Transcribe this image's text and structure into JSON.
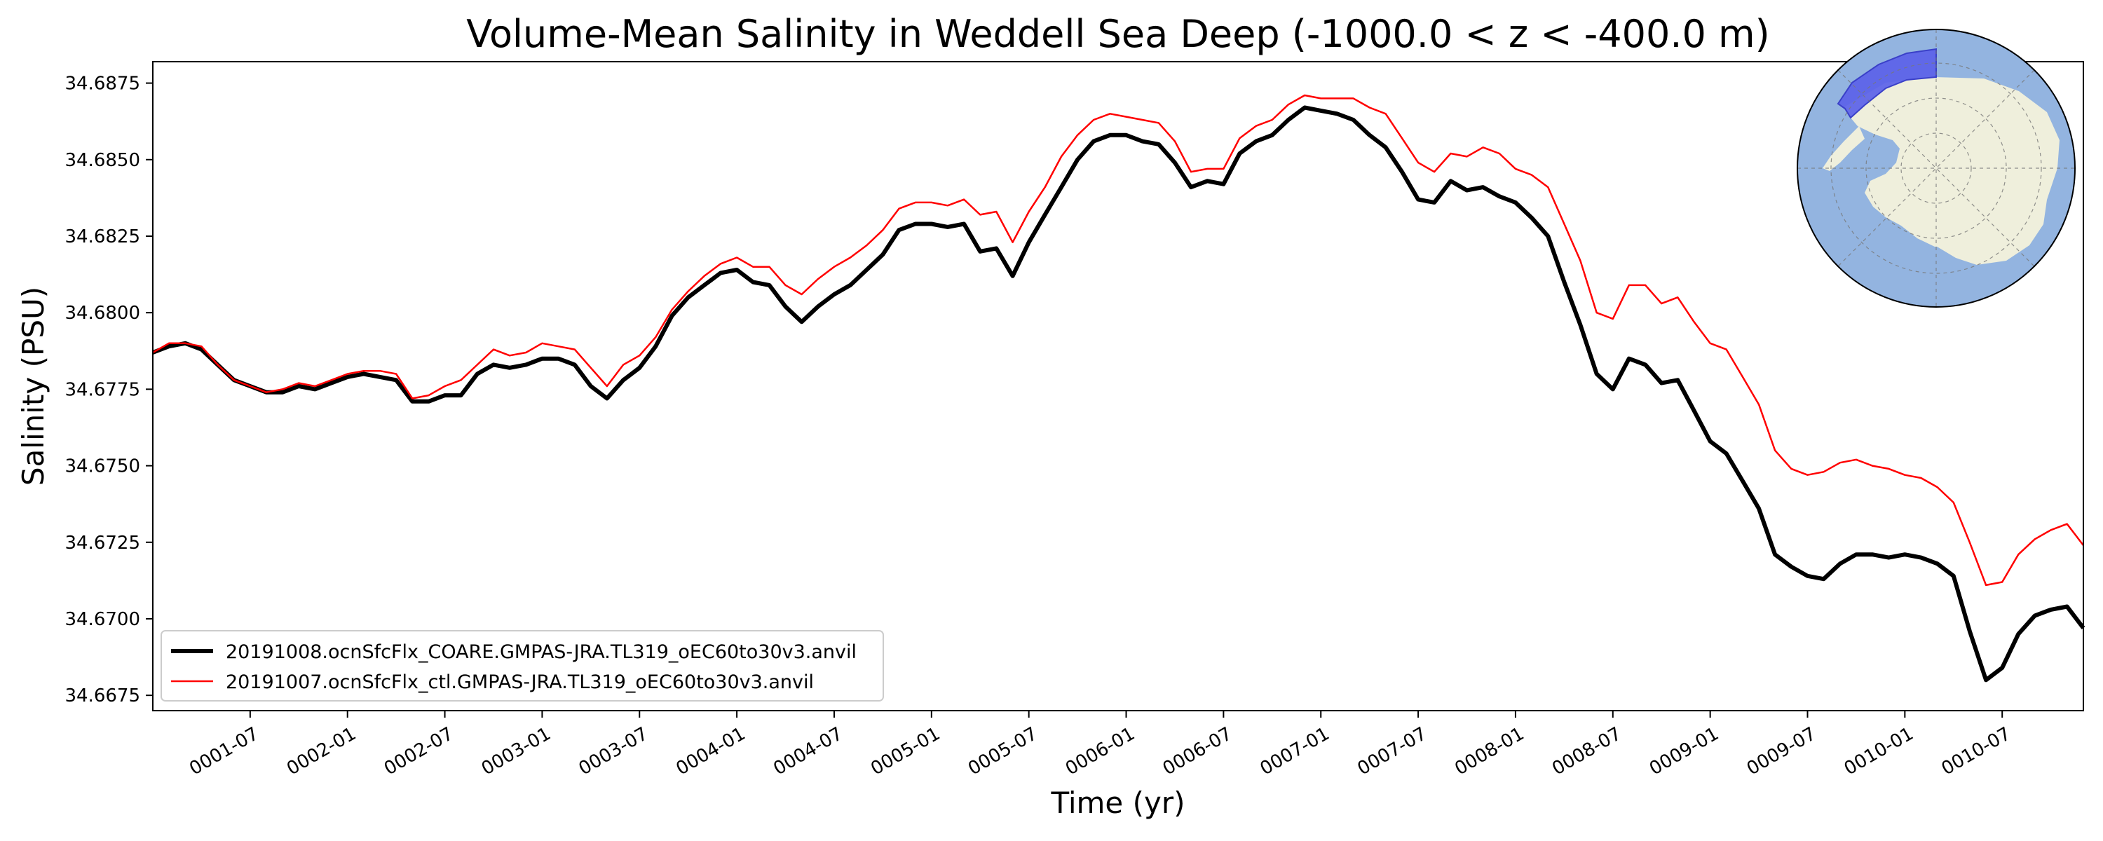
{
  "chart_data": {
    "type": "line",
    "title": "Volume-Mean Salinity in Weddell Sea Deep (-1000.0 < z < -400.0 m)",
    "xlabel": "Time (yr)",
    "ylabel": "Salinity (PSU)",
    "xlim": [
      0.0,
      9.917
    ],
    "ylim": [
      34.667,
      34.6882
    ],
    "x_ticks": [
      {
        "pos": 0.5,
        "label": "0001-07"
      },
      {
        "pos": 1.0,
        "label": "0002-01"
      },
      {
        "pos": 1.5,
        "label": "0002-07"
      },
      {
        "pos": 2.0,
        "label": "0003-01"
      },
      {
        "pos": 2.5,
        "label": "0003-07"
      },
      {
        "pos": 3.0,
        "label": "0004-01"
      },
      {
        "pos": 3.5,
        "label": "0004-07"
      },
      {
        "pos": 4.0,
        "label": "0005-01"
      },
      {
        "pos": 4.5,
        "label": "0005-07"
      },
      {
        "pos": 5.0,
        "label": "0006-01"
      },
      {
        "pos": 5.5,
        "label": "0006-07"
      },
      {
        "pos": 6.0,
        "label": "0007-01"
      },
      {
        "pos": 6.5,
        "label": "0007-07"
      },
      {
        "pos": 7.0,
        "label": "0008-01"
      },
      {
        "pos": 7.5,
        "label": "0008-07"
      },
      {
        "pos": 8.0,
        "label": "0009-01"
      },
      {
        "pos": 8.5,
        "label": "0009-07"
      },
      {
        "pos": 9.0,
        "label": "0010-01"
      },
      {
        "pos": 9.5,
        "label": "0010-07"
      }
    ],
    "y_ticks": [
      34.6675,
      34.67,
      34.6725,
      34.675,
      34.6775,
      34.68,
      34.6825,
      34.685,
      34.6875
    ],
    "y_tick_labels": [
      "34.6675",
      "34.6700",
      "34.6725",
      "34.6750",
      "34.6775",
      "34.6800",
      "34.6825",
      "34.6850",
      "34.6875"
    ],
    "grid": false,
    "legend_position": "lower-left",
    "series": [
      {
        "name": "20191008.ocnSfcFlx_COARE.GMPAS-JRA.TL319_oEC60to30v3.anvil",
        "color": "#000000",
        "width": "thick",
        "x": [
          0.0,
          0.083,
          0.167,
          0.25,
          0.333,
          0.417,
          0.5,
          0.583,
          0.667,
          0.75,
          0.833,
          0.917,
          1.0,
          1.083,
          1.167,
          1.25,
          1.333,
          1.417,
          1.5,
          1.583,
          1.667,
          1.75,
          1.833,
          1.917,
          2.0,
          2.083,
          2.167,
          2.25,
          2.333,
          2.417,
          2.5,
          2.583,
          2.667,
          2.75,
          2.833,
          2.917,
          3.0,
          3.083,
          3.167,
          3.25,
          3.333,
          3.417,
          3.5,
          3.583,
          3.667,
          3.75,
          3.833,
          3.917,
          4.0,
          4.083,
          4.167,
          4.25,
          4.333,
          4.417,
          4.5,
          4.583,
          4.667,
          4.75,
          4.833,
          4.917,
          5.0,
          5.083,
          5.167,
          5.25,
          5.333,
          5.417,
          5.5,
          5.583,
          5.667,
          5.75,
          5.833,
          5.917,
          6.0,
          6.083,
          6.167,
          6.25,
          6.333,
          6.417,
          6.5,
          6.583,
          6.667,
          6.75,
          6.833,
          6.917,
          7.0,
          7.083,
          7.167,
          7.25,
          7.333,
          7.417,
          7.5,
          7.583,
          7.667,
          7.75,
          7.833,
          7.917,
          8.0,
          8.083,
          8.167,
          8.25,
          8.333,
          8.417,
          8.5,
          8.583,
          8.667,
          8.75,
          8.833,
          8.917,
          9.0,
          9.083,
          9.167,
          9.25,
          9.333,
          9.417,
          9.5,
          9.583,
          9.667,
          9.75,
          9.833,
          9.917
        ],
        "values": [
          34.6787,
          34.6789,
          34.679,
          34.6788,
          34.6783,
          34.6778,
          34.6776,
          34.6774,
          34.6774,
          34.6776,
          34.6775,
          34.6777,
          34.6779,
          34.678,
          34.6779,
          34.6778,
          34.6771,
          34.6771,
          34.6773,
          34.6773,
          34.678,
          34.6783,
          34.6782,
          34.6783,
          34.6785,
          34.6785,
          34.6783,
          34.6776,
          34.6772,
          34.6778,
          34.6782,
          34.6789,
          34.6799,
          34.6805,
          34.6809,
          34.6813,
          34.6814,
          34.681,
          34.6809,
          34.6802,
          34.6797,
          34.6802,
          34.6806,
          34.6809,
          34.6814,
          34.6819,
          34.6827,
          34.6829,
          34.6829,
          34.6828,
          34.6829,
          34.682,
          34.6821,
          34.6812,
          34.6823,
          34.6832,
          34.6841,
          34.685,
          34.6856,
          34.6858,
          34.6858,
          34.6856,
          34.6855,
          34.6849,
          34.6841,
          34.6843,
          34.6842,
          34.6852,
          34.6856,
          34.6858,
          34.6863,
          34.6867,
          34.6866,
          34.6865,
          34.6863,
          34.6858,
          34.6854,
          34.6846,
          34.6837,
          34.6836,
          34.6843,
          34.684,
          34.6841,
          34.6838,
          34.6836,
          34.6831,
          34.6825,
          34.681,
          34.6796,
          34.678,
          34.6775,
          34.6785,
          34.6783,
          34.6777,
          34.6778,
          34.6768,
          34.6758,
          34.6754,
          34.6745,
          34.6736,
          34.6721,
          34.6717,
          34.6714,
          34.6713,
          34.6718,
          34.6721,
          34.6721,
          34.672,
          34.6721,
          34.672,
          34.6718,
          34.6714,
          34.6696,
          34.668,
          34.6684,
          34.6695,
          34.6701,
          34.6703,
          34.6704,
          34.6697
        ]
      },
      {
        "name": "20191007.ocnSfcFlx_ctl.GMPAS-JRA.TL319_oEC60to30v3.anvil",
        "color": "#ff0000",
        "width": "thin",
        "x": [
          0.0,
          0.083,
          0.167,
          0.25,
          0.333,
          0.417,
          0.5,
          0.583,
          0.667,
          0.75,
          0.833,
          0.917,
          1.0,
          1.083,
          1.167,
          1.25,
          1.333,
          1.417,
          1.5,
          1.583,
          1.667,
          1.75,
          1.833,
          1.917,
          2.0,
          2.083,
          2.167,
          2.25,
          2.333,
          2.417,
          2.5,
          2.583,
          2.667,
          2.75,
          2.833,
          2.917,
          3.0,
          3.083,
          3.167,
          3.25,
          3.333,
          3.417,
          3.5,
          3.583,
          3.667,
          3.75,
          3.833,
          3.917,
          4.0,
          4.083,
          4.167,
          4.25,
          4.333,
          4.417,
          4.5,
          4.583,
          4.667,
          4.75,
          4.833,
          4.917,
          5.0,
          5.083,
          5.167,
          5.25,
          5.333,
          5.417,
          5.5,
          5.583,
          5.667,
          5.75,
          5.833,
          5.917,
          6.0,
          6.083,
          6.167,
          6.25,
          6.333,
          6.417,
          6.5,
          6.583,
          6.667,
          6.75,
          6.833,
          6.917,
          7.0,
          7.083,
          7.167,
          7.25,
          7.333,
          7.417,
          7.5,
          7.583,
          7.667,
          7.75,
          7.833,
          7.917,
          8.0,
          8.083,
          8.167,
          8.25,
          8.333,
          8.417,
          8.5,
          8.583,
          8.667,
          8.75,
          8.833,
          8.917,
          9.0,
          9.083,
          9.167,
          9.25,
          9.333,
          9.417,
          9.5,
          9.583,
          9.667,
          9.75,
          9.833,
          9.917
        ],
        "values": [
          34.6787,
          34.679,
          34.679,
          34.6789,
          34.6783,
          34.6778,
          34.6776,
          34.6774,
          34.6775,
          34.6777,
          34.6776,
          34.6778,
          34.678,
          34.6781,
          34.6781,
          34.678,
          34.6772,
          34.6773,
          34.6776,
          34.6778,
          34.6783,
          34.6788,
          34.6786,
          34.6787,
          34.679,
          34.6789,
          34.6788,
          34.6782,
          34.6776,
          34.6783,
          34.6786,
          34.6792,
          34.6801,
          34.6807,
          34.6812,
          34.6816,
          34.6818,
          34.6815,
          34.6815,
          34.6809,
          34.6806,
          34.6811,
          34.6815,
          34.6818,
          34.6822,
          34.6827,
          34.6834,
          34.6836,
          34.6836,
          34.6835,
          34.6837,
          34.6832,
          34.6833,
          34.6823,
          34.6833,
          34.6841,
          34.6851,
          34.6858,
          34.6863,
          34.6865,
          34.6864,
          34.6863,
          34.6862,
          34.6856,
          34.6846,
          34.6847,
          34.6847,
          34.6857,
          34.6861,
          34.6863,
          34.6868,
          34.6871,
          34.687,
          34.687,
          34.687,
          34.6867,
          34.6865,
          34.6857,
          34.6849,
          34.6846,
          34.6852,
          34.6851,
          34.6854,
          34.6852,
          34.6847,
          34.6845,
          34.6841,
          34.6829,
          34.6817,
          34.68,
          34.6798,
          34.6809,
          34.6809,
          34.6803,
          34.6805,
          34.6797,
          34.679,
          34.6788,
          34.6779,
          34.677,
          34.6755,
          34.6749,
          34.6747,
          34.6748,
          34.6751,
          34.6752,
          34.675,
          34.6749,
          34.6747,
          34.6746,
          34.6743,
          34.6738,
          34.6725,
          34.6711,
          34.6712,
          34.6721,
          34.6726,
          34.6729,
          34.6731,
          34.6724
        ]
      }
    ],
    "inset_map": {
      "description": "polar stereographic",
      "ocean_color": "#93b4e0",
      "land_color": "#efefdc",
      "region_color": "#5b62e8"
    }
  }
}
